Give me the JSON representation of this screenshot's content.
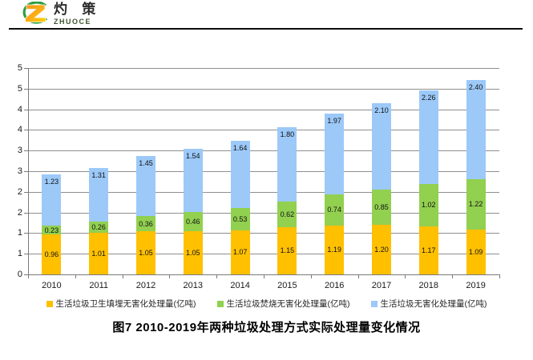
{
  "logo": {
    "brand_cn": "灼 策",
    "brand_en": "ZHUOCE"
  },
  "title": "图7  2010-2019年两种垃圾处理方式实际处理量变化情况",
  "chart_data": {
    "type": "bar",
    "stacked": true,
    "title": "图7  2010-2019年两种垃圾处理方式实际处理量变化情况",
    "categories": [
      "2010",
      "2011",
      "2012",
      "2013",
      "2014",
      "2015",
      "2016",
      "2017",
      "2018",
      "2019"
    ],
    "series": [
      {
        "name": "生活垃圾卫生填埋无害化处理量(亿吨)",
        "color": "#FFC000",
        "values": [
          0.96,
          1.01,
          1.05,
          1.05,
          1.07,
          1.15,
          1.19,
          1.2,
          1.17,
          1.09
        ],
        "labels": [
          "0.96",
          "1.01",
          "1.05",
          "1.05",
          "1.07",
          "1.15",
          "1.19",
          "1.20",
          "1.17",
          "1.09"
        ]
      },
      {
        "name": "生活垃圾焚烧无害化处理量(亿吨)",
        "color": "#92D050",
        "values": [
          0.23,
          0.26,
          0.36,
          0.46,
          0.53,
          0.62,
          0.74,
          0.85,
          1.02,
          1.22
        ],
        "labels": [
          "0.23",
          "0.26",
          "0.36",
          "0.46",
          "0.53",
          "0.62",
          "0.74",
          "0.85",
          "1.02",
          "1.22"
        ]
      },
      {
        "name": "生活垃圾无害化处理量(亿吨)",
        "color": "#9CC9F8",
        "values": [
          1.23,
          1.31,
          1.45,
          1.54,
          1.64,
          1.8,
          1.97,
          2.1,
          2.26,
          2.4
        ],
        "labels": [
          "1.23",
          "1.31",
          "1.45",
          "1.54",
          "1.64",
          "1.80",
          "1.97",
          "2.10",
          "2.26",
          "2.40"
        ]
      }
    ],
    "ylim": [
      0,
      5
    ],
    "y_tick_step": 0.5,
    "y_tick_labels_top_to_bottom": [
      "5",
      "5",
      "4",
      "4",
      "3",
      "3",
      "2",
      "2",
      "1",
      "1",
      "0"
    ],
    "grid": true,
    "legend_position": "bottom",
    "grid_color": "#8F8F8F",
    "label_color": "#111111"
  }
}
